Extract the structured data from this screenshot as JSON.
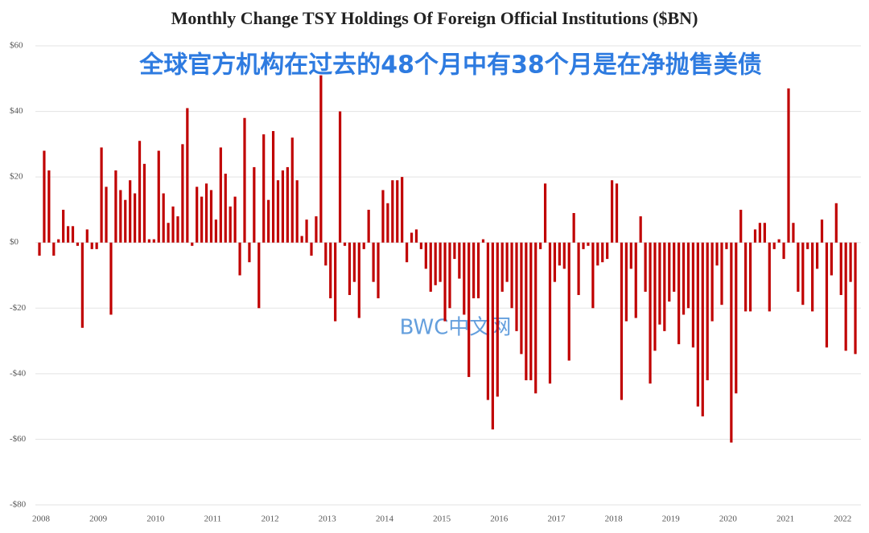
{
  "chart_data": {
    "type": "bar",
    "title": "Monthly Change TSY Holdings Of Foreign Official Institutions ($BN)",
    "subtitle": "全球官方机构在过去的48个月中有38个月是在净抛售美债",
    "watermark": "BWC中文网",
    "color": "#c00000",
    "grid": true,
    "ylim": [
      -80,
      60
    ],
    "yticks": [
      {
        "value": -80,
        "label": "-$80"
      },
      {
        "value": -60,
        "label": "-$60"
      },
      {
        "value": -40,
        "label": "-$40"
      },
      {
        "value": -20,
        "label": "-$20"
      },
      {
        "value": 0,
        "label": "$0"
      },
      {
        "value": 20,
        "label": "$20"
      },
      {
        "value": 40,
        "label": "$40"
      },
      {
        "value": 60,
        "label": "$60"
      }
    ],
    "categories": [
      "2008",
      null,
      null,
      null,
      null,
      null,
      null,
      null,
      null,
      null,
      null,
      null,
      "2009",
      null,
      null,
      null,
      null,
      null,
      null,
      null,
      null,
      null,
      null,
      null,
      "2010",
      null,
      null,
      null,
      null,
      null,
      null,
      null,
      null,
      null,
      null,
      null,
      "2011",
      null,
      null,
      null,
      null,
      null,
      null,
      null,
      null,
      null,
      null,
      null,
      "2012",
      null,
      null,
      null,
      null,
      null,
      null,
      null,
      null,
      null,
      null,
      null,
      "2013",
      null,
      null,
      null,
      null,
      null,
      null,
      null,
      null,
      null,
      null,
      null,
      "2014",
      null,
      null,
      null,
      null,
      null,
      null,
      null,
      null,
      null,
      null,
      null,
      "2015",
      null,
      null,
      null,
      null,
      null,
      null,
      null,
      null,
      null,
      null,
      null,
      "2016",
      null,
      null,
      null,
      null,
      null,
      null,
      null,
      null,
      null,
      null,
      null,
      "2017",
      null,
      null,
      null,
      null,
      null,
      null,
      null,
      null,
      null,
      null,
      null,
      "2018",
      null,
      null,
      null,
      null,
      null,
      null,
      null,
      null,
      null,
      null,
      null,
      "2019",
      null,
      null,
      null,
      null,
      null,
      null,
      null,
      null,
      null,
      null,
      null,
      "2020",
      null,
      null,
      null,
      null,
      null,
      null,
      null,
      null,
      null,
      null,
      null,
      "2021",
      null,
      null,
      null,
      null,
      null,
      null,
      null,
      null,
      null,
      null,
      null,
      "2022",
      null,
      null,
      null
    ],
    "values": [
      -4,
      28,
      22,
      -4,
      1,
      10,
      5,
      5,
      -1,
      -26,
      4,
      -2,
      -2,
      29,
      17,
      -22,
      22,
      16,
      13,
      19,
      15,
      31,
      24,
      1,
      1,
      28,
      15,
      6,
      11,
      8,
      30,
      41,
      -1,
      17,
      14,
      18,
      16,
      7,
      29,
      21,
      11,
      14,
      -10,
      38,
      -6,
      23,
      -20,
      33,
      13,
      34,
      19,
      22,
      23,
      32,
      19,
      2,
      7,
      -4,
      8,
      51,
      -7,
      -17,
      -24,
      40,
      -1,
      -16,
      -12,
      -23,
      -2,
      10,
      -12,
      -17,
      16,
      12,
      19,
      19,
      20,
      -6,
      3,
      4,
      -2,
      -8,
      -15,
      -13,
      -12,
      -24,
      -20,
      -5,
      -11,
      -22,
      -41,
      -17,
      -17,
      1,
      -48,
      -57,
      -47,
      -15,
      -12,
      -20,
      -27,
      -34,
      -42,
      -42,
      -46,
      -2,
      18,
      -43,
      -12,
      -7,
      -8,
      -36,
      9,
      -16,
      -2,
      -1,
      -20,
      -7,
      -6,
      -5,
      19,
      18,
      -48,
      -24,
      -8,
      -23,
      8,
      -15,
      -43,
      -33,
      -25,
      -27,
      -18,
      -15,
      -31,
      -22,
      -20,
      -32,
      -50,
      -53,
      -42,
      -24,
      -7,
      -19,
      -2,
      -61,
      -46,
      10,
      -21,
      -21,
      4,
      6,
      6,
      -21,
      -2,
      1,
      -5,
      47,
      6,
      -15,
      -19,
      -2,
      -21,
      -8,
      7,
      -32,
      -10,
      12,
      -16,
      -33,
      -12,
      -34
    ]
  }
}
